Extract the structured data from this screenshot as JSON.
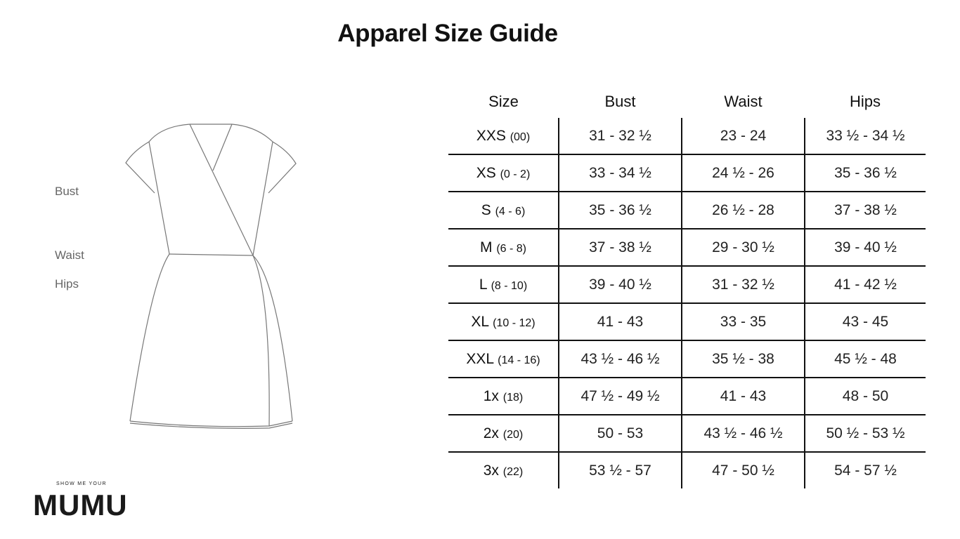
{
  "title": "Apparel Size Guide",
  "measure_labels": {
    "bust": "Bust",
    "waist": "Waist",
    "hips": "Hips"
  },
  "logo": {
    "top": "SHOW ME YOUR",
    "brand": "MUMU"
  },
  "table": {
    "headers": [
      "Size",
      "Bust",
      "Waist",
      "Hips"
    ],
    "rows": [
      {
        "size": "XXS",
        "numeric": "(00)",
        "bust": "31 - 32 ½",
        "waist": "23 - 24",
        "hips": "33 ½ - 34 ½"
      },
      {
        "size": "XS",
        "numeric": "(0 - 2)",
        "bust": "33 - 34 ½",
        "waist": "24 ½ - 26",
        "hips": "35 - 36 ½"
      },
      {
        "size": "S",
        "numeric": "(4 - 6)",
        "bust": "35 - 36 ½",
        "waist": "26 ½ - 28",
        "hips": "37 - 38 ½"
      },
      {
        "size": "M",
        "numeric": "(6 - 8)",
        "bust": "37 - 38 ½",
        "waist": "29 - 30 ½",
        "hips": "39 - 40 ½"
      },
      {
        "size": "L",
        "numeric": "(8 - 10)",
        "bust": "39 - 40 ½",
        "waist": "31 - 32 ½",
        "hips": "41 - 42 ½"
      },
      {
        "size": "XL",
        "numeric": "(10 - 12)",
        "bust": "41 - 43",
        "waist": "33 - 35",
        "hips": "43 - 45"
      },
      {
        "size": "XXL",
        "numeric": "(14 - 16)",
        "bust": "43 ½ - 46 ½",
        "waist": "35 ½ - 38",
        "hips": "45 ½ - 48"
      },
      {
        "size": "1x",
        "numeric": "(18)",
        "bust": "47 ½ - 49 ½",
        "waist": "41 - 43",
        "hips": "48 - 50"
      },
      {
        "size": "2x",
        "numeric": "(20)",
        "bust": "50 - 53",
        "waist": "43 ½ - 46 ½",
        "hips": "50 ½ - 53 ½"
      },
      {
        "size": "3x",
        "numeric": "(22)",
        "bust": "53 ½ - 57",
        "waist": "47 - 50 ½",
        "hips": "54 - 57 ½"
      }
    ]
  }
}
